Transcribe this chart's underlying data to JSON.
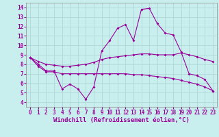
{
  "xlabel": "Windchill (Refroidissement éolien,°C)",
  "background_color": "#c8eeed",
  "line_color": "#990099",
  "x": [
    0,
    1,
    2,
    3,
    4,
    5,
    6,
    7,
    8,
    9,
    10,
    11,
    12,
    13,
    14,
    15,
    16,
    17,
    18,
    19,
    20,
    21,
    22,
    23
  ],
  "line1": [
    8.7,
    8.0,
    7.3,
    7.3,
    5.4,
    5.9,
    5.4,
    4.3,
    5.6,
    9.4,
    10.5,
    11.8,
    12.2,
    10.5,
    13.8,
    13.9,
    12.3,
    11.3,
    11.1,
    9.3,
    7.0,
    6.8,
    6.4,
    5.2
  ],
  "line2": [
    8.7,
    8.3,
    8.0,
    7.9,
    7.8,
    7.8,
    7.9,
    8.0,
    8.2,
    8.5,
    8.7,
    8.8,
    8.9,
    9.0,
    9.1,
    9.1,
    9.0,
    9.0,
    9.0,
    9.2,
    9.0,
    8.8,
    8.5,
    8.3
  ],
  "line3": [
    8.7,
    7.8,
    7.2,
    7.2,
    7.0,
    7.0,
    7.0,
    7.0,
    7.0,
    7.0,
    7.0,
    7.0,
    7.0,
    6.9,
    6.9,
    6.8,
    6.7,
    6.6,
    6.5,
    6.3,
    6.1,
    5.9,
    5.6,
    5.2
  ],
  "ylim": [
    3.5,
    14.5
  ],
  "xlim": [
    -0.5,
    23.5
  ],
  "yticks": [
    4,
    5,
    6,
    7,
    8,
    9,
    10,
    11,
    12,
    13,
    14
  ],
  "xticks": [
    0,
    1,
    2,
    3,
    4,
    5,
    6,
    7,
    8,
    9,
    10,
    11,
    12,
    13,
    14,
    15,
    16,
    17,
    18,
    19,
    20,
    21,
    22,
    23
  ],
  "grid_color": "#aad4d4",
  "marker": "D",
  "marker_size": 2.0,
  "line_width": 0.8,
  "tick_fontsize": 5.5,
  "xlabel_fontsize": 6.5
}
